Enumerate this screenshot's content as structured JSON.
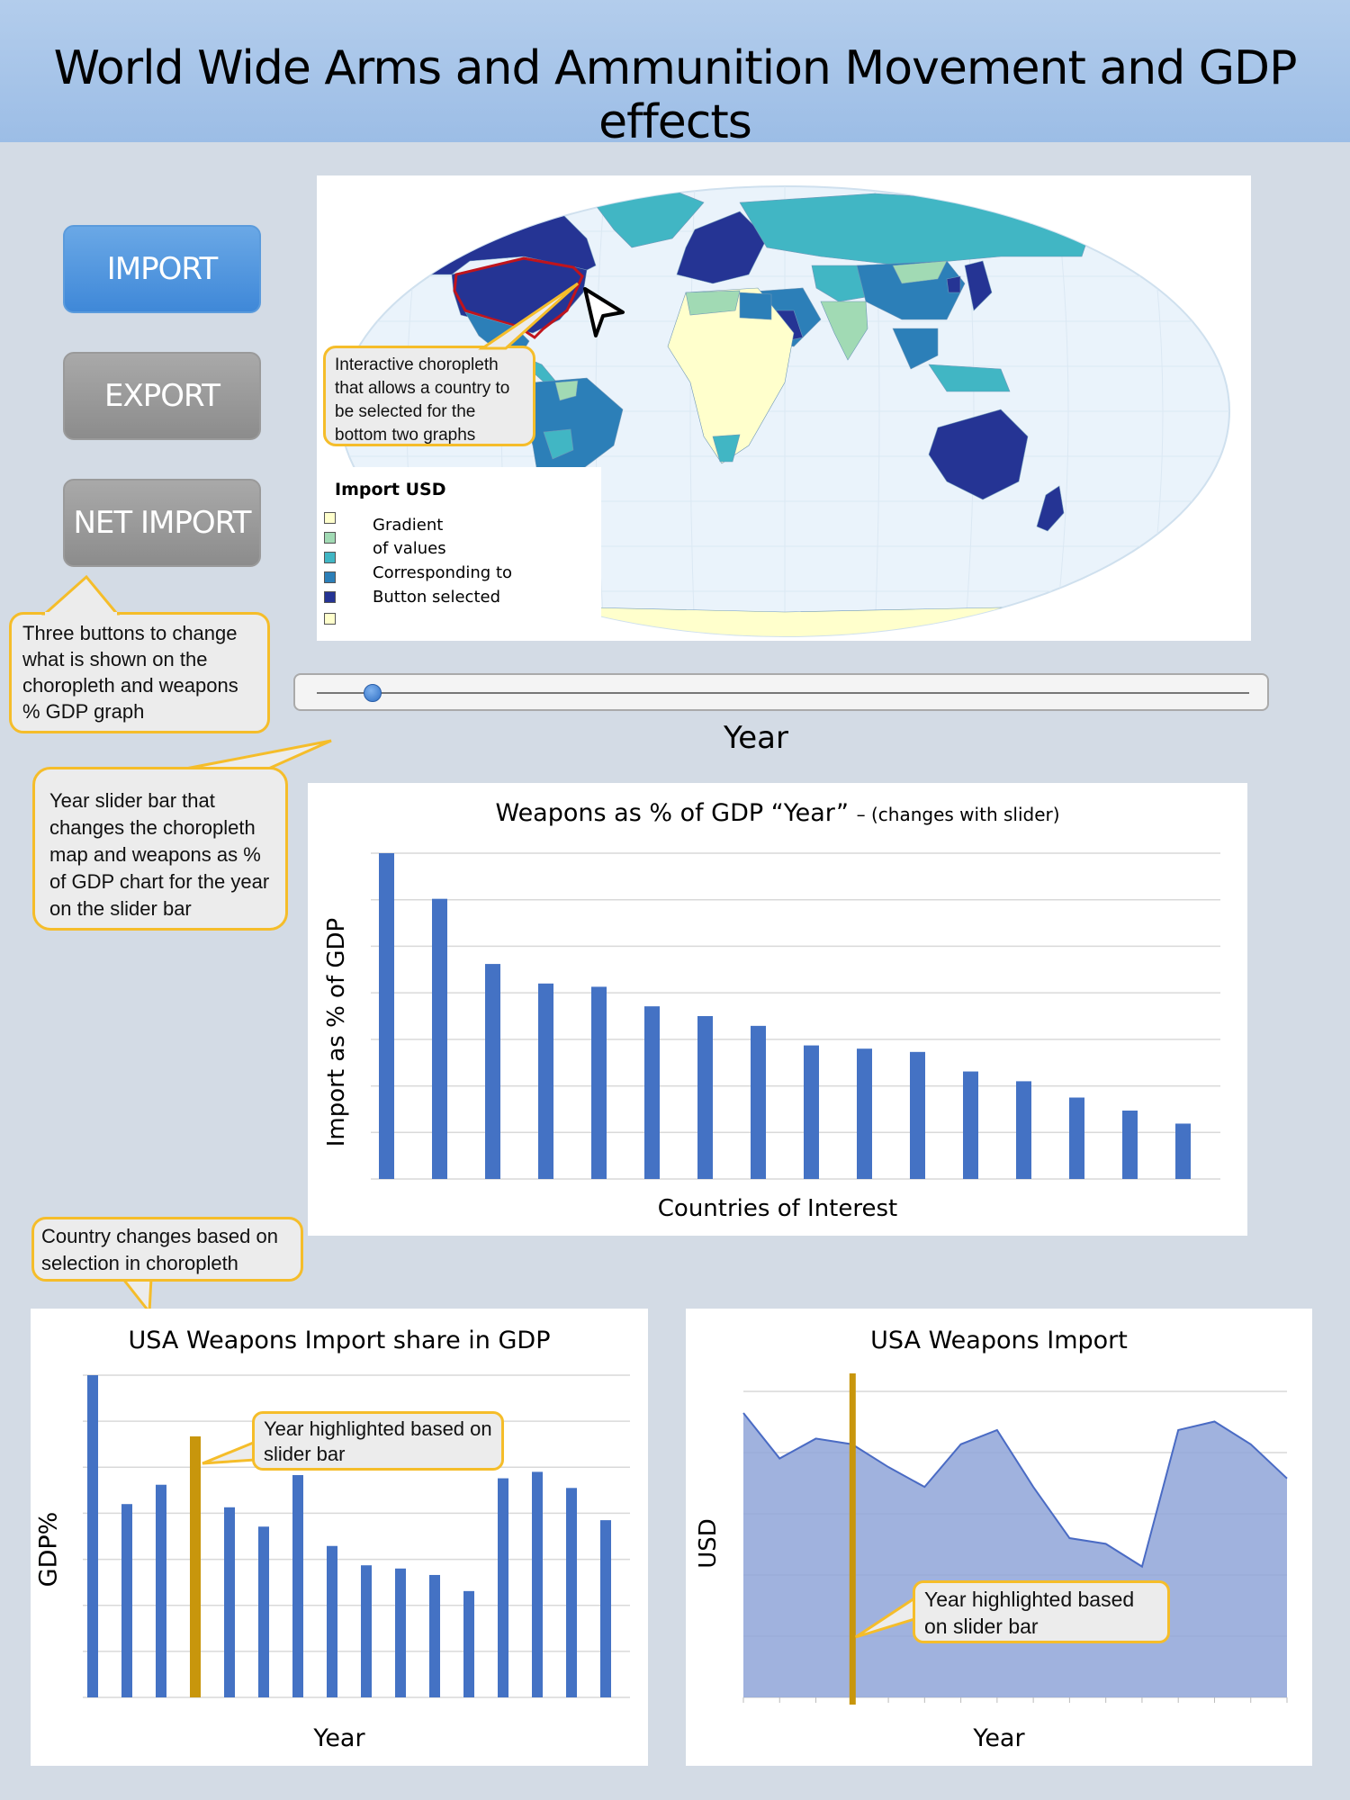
{
  "header": {
    "title": "World Wide Arms and Ammunition Movement and GDP effects"
  },
  "buttons": {
    "import": "IMPORT",
    "export": "EXPORT",
    "net_import": "NET IMPORT"
  },
  "map": {
    "legend_title": "Import USD",
    "legend_items": [
      "Gradient",
      "of values",
      "Corresponding to",
      "Button selected",
      ""
    ],
    "legend_colors": [
      "#ffffcc",
      "#a1dab4",
      "#41b6c4",
      "#2c7fb8",
      "#253494",
      "#ffffcc"
    ]
  },
  "callouts": {
    "map": "Interactive choropleth that allows a country to be selected for the bottom two graphs",
    "buttons": "Three buttons to change what is shown on the choropleth and weapons % GDP graph",
    "slider": "Year slider bar that changes the choropleth map and weapons as % of GDP chart for the year on the slider bar",
    "country": "Country changes based on selection in choropleth",
    "highlight_bar": "Year highlighted based on slider bar",
    "highlight_area": "Year highlighted based on slider bar"
  },
  "slider": {
    "label": "Year",
    "position": 0.05
  },
  "colors": {
    "bar": "#4472c4",
    "highlight": "#c8960c",
    "area_fill": "#8fa4d8",
    "area_line": "#4a6bc4",
    "callout_border": "#f5bd2a"
  },
  "chart_data": [
    {
      "type": "bar",
      "title": "Weapons as % of GDP “Year”",
      "subtitle": "– (changes with slider)",
      "xlabel": "Countries of Interest",
      "ylabel": "Import as % of GDP",
      "values": [
        100,
        86,
        66,
        60,
        59,
        53,
        50,
        47,
        41,
        40,
        39,
        33,
        30,
        25,
        21,
        17
      ],
      "ylim": [
        0,
        100
      ],
      "grid": true
    },
    {
      "type": "bar",
      "title": "USA Weapons Import share in GDP",
      "xlabel": "Year",
      "ylabel": "GDP%",
      "values": [
        100,
        60,
        66,
        81,
        59,
        53,
        69,
        47,
        41,
        40,
        38,
        33,
        68,
        70,
        65,
        55
      ],
      "highlight_index": 3,
      "ylim": [
        0,
        100
      ],
      "grid": true
    },
    {
      "type": "area",
      "title": "USA Weapons Import",
      "xlabel": "Year",
      "ylabel": "USD",
      "values": [
        100,
        84,
        91,
        89,
        81,
        74,
        89,
        94,
        74,
        56,
        54,
        46,
        94,
        97,
        89,
        77
      ],
      "highlight_index": 3,
      "ylim": [
        0,
        100
      ],
      "grid": true
    }
  ]
}
